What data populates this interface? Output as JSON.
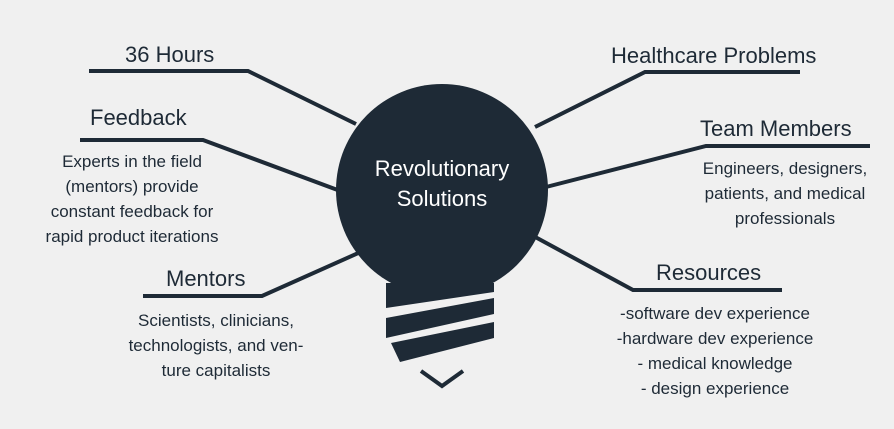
{
  "center": {
    "line1": "Revolutionary",
    "line2": "Solutions"
  },
  "colors": {
    "background": "#f0f0f0",
    "primary": "#1e2a36"
  },
  "branches": {
    "hours": {
      "title": "36 Hours"
    },
    "feedback": {
      "title": "Feedback",
      "lines": [
        "Experts in the field",
        "(mentors) provide",
        "constant feedback for",
        "rapid product iterations"
      ]
    },
    "mentors": {
      "title": "Mentors",
      "lines": [
        "Scientists, clinicians,",
        "technologists, and ven-",
        "ture capitalists"
      ]
    },
    "healthcare": {
      "title": "Healthcare Problems"
    },
    "team": {
      "title": "Team Members",
      "lines": [
        "Engineers, designers,",
        "patients, and medical",
        "professionals"
      ]
    },
    "resources": {
      "title": "Resources",
      "lines": [
        "-software dev experience",
        "-hardware dev experience",
        "- medical knowledge",
        "- design experience"
      ]
    }
  },
  "icons": {
    "bulb": "lightbulb-icon"
  }
}
